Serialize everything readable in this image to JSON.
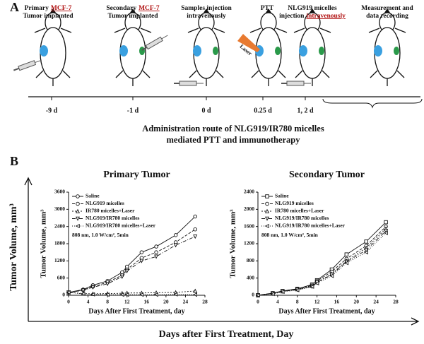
{
  "panel_a": {
    "label": "A",
    "steps": [
      {
        "lines": [
          [
            {
              "t": "Primary"
            },
            {
              "t": "MCF-7",
              "red": true
            }
          ],
          [
            {
              "t": "Tumor implanted"
            }
          ]
        ]
      },
      {
        "lines": [
          [
            {
              "t": "Secondary"
            },
            {
              "t": "MCF-7",
              "red": true
            }
          ],
          [
            {
              "t": "Tumor implanted"
            }
          ]
        ]
      },
      {
        "lines": [
          [
            {
              "t": "Samples injection"
            }
          ],
          [
            {
              "t": "intravenously"
            }
          ]
        ]
      },
      {
        "lines": [
          [
            {
              "t": "PTT"
            }
          ]
        ]
      },
      {
        "lines": [
          [
            {
              "t": "NLG919 micelles"
            }
          ],
          [
            {
              "t": "injection"
            },
            {
              "t": "intravenously",
              "red": true
            }
          ]
        ]
      },
      {
        "lines": [
          [
            {
              "t": "Measurement and"
            }
          ],
          [
            {
              "t": "data recording"
            }
          ]
        ]
      }
    ],
    "laser": "Laser",
    "days": [
      "-9 d",
      "-1 d",
      "0 d",
      "0.25 d",
      "1, 2 d"
    ],
    "caption": [
      "Administration route of NLG919/IR780 micelles",
      "mediated PTT and immunotherapy"
    ]
  },
  "panel_b": {
    "label": "B",
    "ylabel": "Tumor Volume, mm³",
    "xlabel": "Days after First Treatment, Day"
  },
  "chart_data": [
    {
      "type": "line",
      "title": "Primary Tumor",
      "xlabel": "Days After First Treatment, day",
      "ylabel": "Tumor Volume, mm³",
      "annotation": "808 nm, 1.0 W/cm², 5min",
      "x": [
        0,
        3,
        5,
        8,
        11,
        12,
        15,
        18,
        22,
        26
      ],
      "xlim": [
        0,
        28
      ],
      "xticks": [
        0,
        4,
        8,
        12,
        16,
        20,
        24,
        28
      ],
      "ylim": [
        0,
        3600
      ],
      "yticks": [
        0,
        600,
        1200,
        1800,
        2400,
        3000,
        3600
      ],
      "series": [
        {
          "name": "Saline",
          "color": "#111",
          "marker": "circle",
          "dash": "",
          "values": [
            100,
            200,
            350,
            500,
            800,
            1000,
            1500,
            1700,
            2100,
            2750
          ]
        },
        {
          "name": "NLG919 micelles",
          "color": "#111",
          "marker": "circle",
          "dash": "4 2",
          "values": [
            100,
            180,
            300,
            450,
            700,
            900,
            1300,
            1500,
            1850,
            2300
          ]
        },
        {
          "name": "IR780 micelles+Laser",
          "color": "#111",
          "marker": "up",
          "dash": "2 2",
          "values": [
            100,
            60,
            50,
            60,
            70,
            80,
            80,
            90,
            100,
            150
          ]
        },
        {
          "name": "NLG919/IR780 micelles",
          "color": "#111",
          "marker": "down",
          "dash": "5 2 1 2",
          "values": [
            100,
            170,
            280,
            400,
            650,
            850,
            1200,
            1350,
            1750,
            2050
          ]
        },
        {
          "name": "NLG919/IR780 micelles+Laser",
          "color": "#111",
          "marker": "left",
          "dash": "1 2",
          "values": [
            100,
            50,
            30,
            20,
            20,
            20,
            20,
            20,
            30,
            20
          ]
        }
      ]
    },
    {
      "type": "line",
      "title": "Secondary Tumor",
      "xlabel": "Days After First Treatment, day",
      "ylabel": "Tumor Volume, mm³",
      "annotation": "808 nm, 1.0 W/cm², 5min",
      "x": [
        0,
        3,
        5,
        8,
        11,
        12,
        15,
        18,
        22,
        26
      ],
      "xlim": [
        0,
        28
      ],
      "xticks": [
        0,
        4,
        8,
        12,
        16,
        20,
        24,
        28
      ],
      "ylim": [
        0,
        2400
      ],
      "yticks": [
        0,
        400,
        800,
        1200,
        1600,
        2000,
        2400
      ],
      "series": [
        {
          "name": "Saline",
          "color": "#111",
          "marker": "square",
          "dash": "",
          "values": [
            0,
            50,
            100,
            150,
            250,
            350,
            600,
            950,
            1250,
            1700
          ]
        },
        {
          "name": "NLG919 micelles",
          "color": "#111",
          "marker": "circle",
          "dash": "4 2",
          "values": [
            0,
            50,
            100,
            150,
            230,
            330,
            550,
            850,
            1150,
            1600
          ]
        },
        {
          "name": "IR780 micelles+Laser",
          "color": "#111",
          "marker": "up",
          "dash": "2 2",
          "values": [
            0,
            40,
            90,
            140,
            220,
            300,
            500,
            800,
            1100,
            1550
          ]
        },
        {
          "name": "NLG919/IR780 micelles",
          "color": "#111",
          "marker": "down",
          "dash": "5 2 1 2",
          "values": [
            0,
            40,
            90,
            130,
            200,
            300,
            480,
            780,
            1050,
            1500
          ]
        },
        {
          "name": "NLG919/IR780 micelles+Laser",
          "color": "#111",
          "marker": "left",
          "dash": "1 2",
          "values": [
            0,
            30,
            80,
            120,
            200,
            280,
            450,
            750,
            1000,
            1450
          ]
        }
      ]
    }
  ]
}
